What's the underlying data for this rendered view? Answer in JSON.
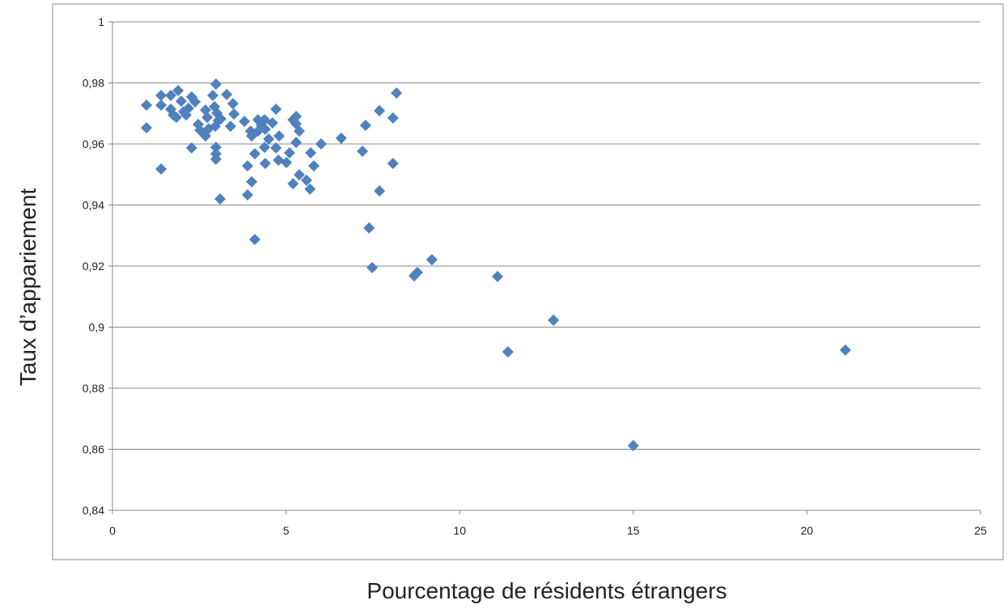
{
  "chart_data": {
    "type": "scatter",
    "x_label": "Pourcentage de résidents étrangers",
    "y_label": "Taux d’appariement",
    "color": "#4f81bd",
    "grid": true,
    "xlim": [
      0,
      25
    ],
    "xticks": [
      0,
      5,
      10,
      15,
      20,
      25
    ],
    "ylim": [
      0.84,
      1
    ],
    "yticks": [
      {
        "value": 0.84,
        "label": "0,84"
      },
      {
        "value": 0.86,
        "label": "0,86"
      },
      {
        "value": 0.88,
        "label": "0,88"
      },
      {
        "value": 0.9,
        "label": "0,9"
      },
      {
        "value": 0.92,
        "label": "0,92"
      },
      {
        "value": 0.94,
        "label": "0,94"
      },
      {
        "value": 0.96,
        "label": "0,96"
      },
      {
        "value": 0.98,
        "label": "0,98"
      },
      1
    ],
    "x": [
      0.98,
      0.98,
      1.4,
      1.4,
      1.4,
      1.68,
      1.68,
      1.75,
      1.84,
      1.89,
      1.98,
      2.05,
      2.12,
      2.19,
      2.28,
      2.38,
      2.28,
      2.47,
      2.52,
      2.68,
      2.73,
      2.68,
      2.77,
      2.89,
      2.98,
      2.94,
      3.01,
      2.96,
      3.05,
      3.12,
      2.98,
      2.98,
      2.98,
      3.1,
      3.29,
      3.47,
      3.4,
      3.5,
      3.8,
      3.89,
      3.89,
      3.98,
      4.01,
      4.01,
      4.1,
      4.1,
      4.19,
      4.19,
      4.29,
      4.38,
      4.4,
      4.38,
      4.4,
      4.5,
      4.61,
      4.71,
      4.71,
      4.8,
      4.78,
      5.01,
      5.1,
      5.2,
      5.29,
      5.29,
      5.29,
      5.38,
      5.2,
      5.38,
      5.59,
      5.69,
      5.71,
      5.8,
      6.01,
      6.59,
      7.2,
      7.29,
      7.39,
      7.48,
      7.69,
      7.69,
      8.08,
      8.08,
      8.18,
      8.69,
      8.78,
      9.2,
      11.09,
      11.39,
      12.7,
      15.0,
      21.11
    ],
    "values": [
      0.9727,
      0.9653,
      0.9759,
      0.9727,
      0.9518,
      0.9759,
      0.9714,
      0.9695,
      0.9687,
      0.9775,
      0.974,
      0.9706,
      0.9695,
      0.9717,
      0.9754,
      0.9738,
      0.9587,
      0.9664,
      0.9645,
      0.9711,
      0.9687,
      0.9626,
      0.965,
      0.9759,
      0.9796,
      0.9722,
      0.9701,
      0.9658,
      0.9677,
      0.9682,
      0.9589,
      0.9568,
      0.955,
      0.942,
      0.9762,
      0.9732,
      0.9658,
      0.9698,
      0.9674,
      0.9528,
      0.9433,
      0.9642,
      0.9626,
      0.9476,
      0.9568,
      0.9287,
      0.9679,
      0.9642,
      0.9661,
      0.9679,
      0.9648,
      0.9589,
      0.9536,
      0.9616,
      0.9669,
      0.9714,
      0.9587,
      0.9626,
      0.9547,
      0.9539,
      0.9571,
      0.9679,
      0.969,
      0.9666,
      0.9605,
      0.9642,
      0.947,
      0.9499,
      0.9481,
      0.9452,
      0.9571,
      0.9528,
      0.96,
      0.9619,
      0.9576,
      0.9661,
      0.9325,
      0.9195,
      0.9709,
      0.9446,
      0.9685,
      0.9536,
      0.9767,
      0.9168,
      0.9179,
      0.9221,
      0.9166,
      0.8919,
      0.9023,
      0.8612,
      0.8925
    ]
  }
}
